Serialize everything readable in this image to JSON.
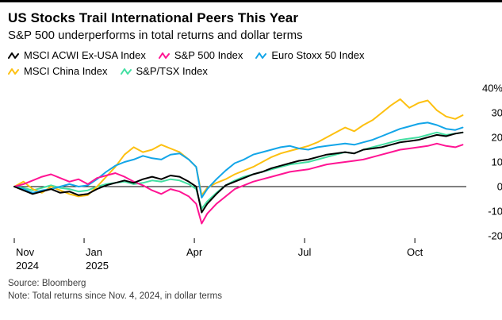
{
  "header": {
    "title": "US Stocks Trail International Peers This Year",
    "subtitle": "S&P 500 underperforms in total returns and dollar terms"
  },
  "footer": {
    "source": "Source: Bloomberg",
    "note": "Note: Total returns since Nov. 4, 2024, in dollar terms"
  },
  "chart_data": {
    "type": "line",
    "title": "US Stocks Trail International Peers This Year",
    "subtitle": "S&P 500 underperforms in total returns and dollar terms",
    "x_unit": "months since Nov 4, 2024",
    "xlim": [
      0,
      12.3
    ],
    "ylim": [
      -20,
      40
    ],
    "grid": false,
    "zero_line": true,
    "legend_position": "top",
    "y_ticks": [
      {
        "value": 40,
        "label": "40%"
      },
      {
        "value": 30,
        "label": "30"
      },
      {
        "value": 20,
        "label": "20"
      },
      {
        "value": 10,
        "label": "10"
      },
      {
        "value": 0,
        "label": "0"
      },
      {
        "value": -10,
        "label": "-10"
      },
      {
        "value": -20,
        "label": "-20"
      }
    ],
    "x_ticks": [
      {
        "x": 0.0,
        "label": "Nov",
        "sublabel": "2024",
        "align": "start"
      },
      {
        "x": 1.9,
        "label": "Jan",
        "sublabel": "2025",
        "align": "start"
      },
      {
        "x": 4.9,
        "label": "Apr",
        "sublabel": "",
        "align": "middle"
      },
      {
        "x": 7.9,
        "label": "Jul",
        "sublabel": "",
        "align": "middle"
      },
      {
        "x": 10.9,
        "label": "Oct",
        "sublabel": "",
        "align": "middle"
      }
    ],
    "x": [
      0,
      0.25,
      0.5,
      0.75,
      1,
      1.25,
      1.5,
      1.75,
      2,
      2.25,
      2.5,
      2.75,
      3,
      3.25,
      3.5,
      3.75,
      4,
      4.25,
      4.5,
      4.75,
      4.95,
      5.1,
      5.25,
      5.5,
      5.75,
      6,
      6.25,
      6.5,
      6.75,
      7,
      7.25,
      7.5,
      7.75,
      8,
      8.25,
      8.5,
      8.75,
      9,
      9.25,
      9.5,
      9.75,
      10,
      10.25,
      10.5,
      10.75,
      11,
      11.25,
      11.5,
      11.75,
      12,
      12.2
    ],
    "series": [
      {
        "name": "MSCI ACWI Ex-USA Index",
        "color": "#000000",
        "y": [
          0,
          -1.5,
          -3,
          -2,
          -1,
          -2.5,
          -2,
          -3.5,
          -3,
          -1,
          0.5,
          1.5,
          2.5,
          1.5,
          3,
          4,
          3,
          4.5,
          4,
          2,
          0,
          -10.5,
          -7,
          -3,
          0.5,
          2,
          3.5,
          5,
          6,
          7.5,
          8.5,
          9.5,
          10.5,
          11,
          12,
          13,
          13.5,
          14,
          13.5,
          15,
          15.5,
          16,
          17,
          18,
          18.5,
          19,
          20,
          21,
          20.5,
          21.5,
          22
        ]
      },
      {
        "name": "S&P 500 Index",
        "color": "#ff1493",
        "y": [
          0,
          1,
          2.5,
          4,
          5,
          3.5,
          2,
          3,
          1,
          3.5,
          4.5,
          5.5,
          4,
          2,
          0.5,
          -1.5,
          -3,
          -1,
          -2,
          -4,
          -7,
          -15,
          -11,
          -7,
          -4,
          -1,
          0.5,
          2,
          3,
          4,
          5,
          6,
          6.5,
          7,
          8,
          9,
          9.5,
          10,
          10.5,
          11,
          12,
          13,
          14,
          15,
          15.5,
          16,
          16.5,
          17.5,
          16.5,
          16,
          17
        ]
      },
      {
        "name": "Euro Stoxx 50 Index",
        "color": "#12a5e8",
        "y": [
          0,
          -1,
          -2.5,
          -1.5,
          -1,
          0,
          1,
          0,
          0.5,
          3,
          6,
          8.5,
          10,
          11,
          12.5,
          11.5,
          11,
          13,
          13.5,
          11,
          8,
          -4.5,
          -1,
          3,
          6.5,
          9.5,
          11,
          13,
          14,
          15,
          16,
          16.5,
          15.5,
          15,
          16,
          16.5,
          17,
          17.5,
          17,
          18,
          19,
          20.5,
          22,
          23.5,
          24.5,
          25.5,
          26,
          25,
          23.5,
          23,
          24
        ]
      },
      {
        "name": "MSCI China Index",
        "color": "#fdc010",
        "y": [
          0,
          2,
          -1,
          -2.5,
          0,
          -1.5,
          -3,
          -4,
          -3.5,
          0,
          4,
          8,
          13,
          16,
          14,
          15,
          17,
          15.5,
          14,
          11,
          8,
          -3.5,
          -0.5,
          1.5,
          3,
          5,
          6.5,
          8,
          10,
          12,
          13.5,
          14.5,
          15.5,
          16.5,
          18,
          20,
          22,
          24,
          22.5,
          25,
          27,
          30,
          33,
          35.5,
          32,
          34,
          35,
          31,
          28.5,
          27.5,
          29
        ]
      },
      {
        "name": "S&P/TSX Index",
        "color": "#43dfa2",
        "y": [
          0,
          -0.5,
          -1.5,
          -0.5,
          0.5,
          -0.5,
          -1,
          -2,
          -1.5,
          0,
          1,
          1.5,
          2,
          1,
          1.5,
          2.5,
          2,
          3,
          2.5,
          1,
          -1,
          -9,
          -6,
          -2.5,
          0.5,
          2.5,
          4,
          5,
          6,
          7,
          8,
          9,
          9.5,
          10,
          11,
          12,
          13,
          14,
          13.5,
          15,
          16,
          17,
          18,
          19,
          19.5,
          20,
          21,
          22,
          21,
          21.5,
          22
        ]
      }
    ]
  }
}
